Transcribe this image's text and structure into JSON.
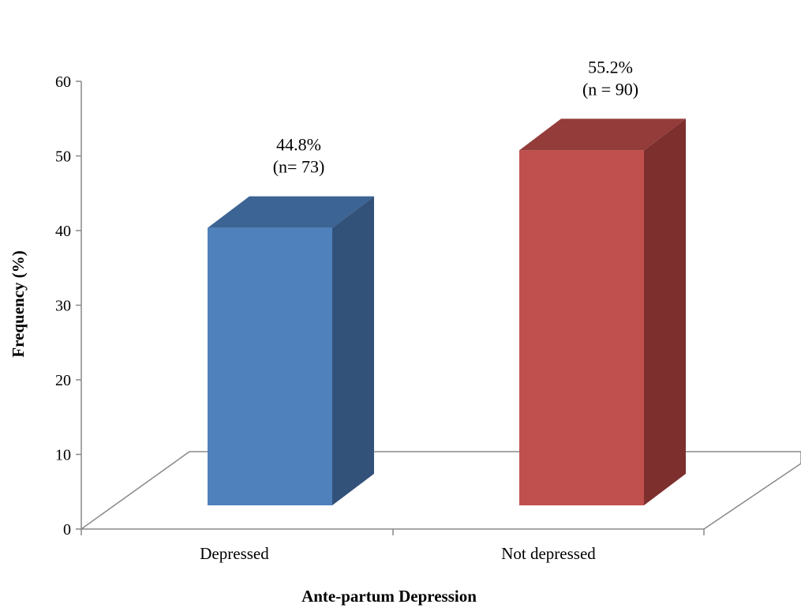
{
  "chart_data": {
    "type": "bar",
    "categories": [
      "Depressed",
      "Not depressed"
    ],
    "values": [
      44.8,
      55.2
    ],
    "data_labels": [
      {
        "line1": "44.8%",
        "line2": "(n= 73)"
      },
      {
        "line1": "55.2%",
        "line2": "(n = 90)"
      }
    ],
    "title": "",
    "xlabel": "Ante-partum Depression",
    "ylabel": "Frequency (%)",
    "ylim": [
      0,
      60
    ],
    "yticks": [
      "0",
      "10",
      "20",
      "30",
      "40",
      "50",
      "60"
    ],
    "grid": false,
    "three_d": true,
    "colors": {
      "Depressed": {
        "front": "#4F81BD",
        "side": "#33527A",
        "top": "#3C6494"
      },
      "Not depressed": {
        "front": "#C0504D",
        "side": "#7D2F2E",
        "top": "#943C3A"
      },
      "axis": "#888888"
    }
  }
}
